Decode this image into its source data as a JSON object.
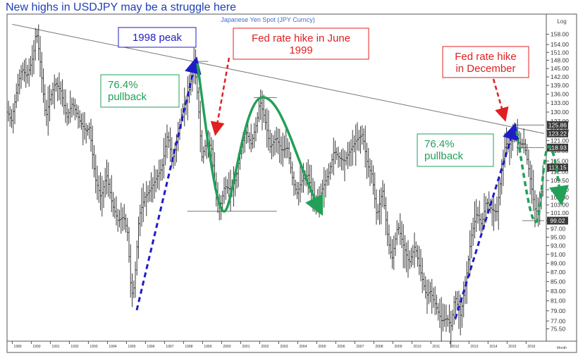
{
  "headline": "New highs in USDJPY may be a struggle here",
  "chart_data": {
    "type": "ohlc-bar",
    "title": "Japanese Yen Spot (JPY Curncy)",
    "scale_label": "Log",
    "frequency_label": "Month",
    "y_scale": "log",
    "ylim": [
      74.5,
      161
    ],
    "y_ticks": [
      158,
      154,
      151,
      148,
      145,
      142,
      139,
      136,
      133,
      130,
      127,
      124,
      121,
      118,
      115,
      112,
      109.5,
      107,
      105,
      103,
      101,
      99,
      97,
      95,
      93,
      91,
      89,
      87,
      85,
      83,
      81,
      79,
      77,
      75.5
    ],
    "y_tick_labels": [
      "158.00",
      "154.00",
      "151.00",
      "148.00",
      "145.00",
      "142.00",
      "139.00",
      "136.00",
      "133.00",
      "130.00",
      "127.00",
      "124.00",
      "121.00",
      "118.00",
      "115.00",
      "112.00",
      "109.50",
      "107.00",
      "105.00",
      "103.00",
      "101.00",
      "99.00",
      "97.00",
      "95.00",
      "93.00",
      "91.00",
      "89.00",
      "87.00",
      "85.00",
      "83.00",
      "81.00",
      "79.00",
      "77.00",
      "75.50"
    ],
    "x_range": [
      1988.8,
      2016.95
    ],
    "x_ticks": [
      "1989",
      "1990",
      "1991",
      "1992",
      "1993",
      "1994",
      "1995",
      "1996",
      "1997",
      "1998",
      "1999",
      "2000",
      "2001",
      "2002",
      "2003",
      "2004",
      "2005",
      "2006",
      "2007",
      "2008",
      "2009",
      "2010",
      "2011",
      "2012",
      "2013",
      "2014",
      "2015",
      "2016"
    ],
    "grid": false,
    "price_path": [
      [
        1988.8,
        130
      ],
      [
        1989.0,
        127
      ],
      [
        1989.3,
        138
      ],
      [
        1989.55,
        145
      ],
      [
        1989.8,
        142
      ],
      [
        1990.0,
        146
      ],
      [
        1990.15,
        150
      ],
      [
        1990.3,
        160
      ],
      [
        1990.5,
        148
      ],
      [
        1990.8,
        128
      ],
      [
        1991.0,
        134
      ],
      [
        1991.3,
        140
      ],
      [
        1991.6,
        137
      ],
      [
        1991.9,
        128
      ],
      [
        1992.2,
        133
      ],
      [
        1992.6,
        127
      ],
      [
        1992.9,
        124
      ],
      [
        1993.1,
        125
      ],
      [
        1993.4,
        110
      ],
      [
        1993.7,
        105
      ],
      [
        1994.0,
        111
      ],
      [
        1994.3,
        103
      ],
      [
        1994.6,
        99
      ],
      [
        1994.9,
        100
      ],
      [
        1995.1,
        96
      ],
      [
        1995.3,
        82
      ],
      [
        1995.45,
        84
      ],
      [
        1995.7,
        100
      ],
      [
        1996.0,
        105
      ],
      [
        1996.3,
        107
      ],
      [
        1996.6,
        110
      ],
      [
        1996.9,
        113
      ],
      [
        1997.2,
        123
      ],
      [
        1997.45,
        115
      ],
      [
        1997.7,
        121
      ],
      [
        1997.95,
        130
      ],
      [
        1998.3,
        136
      ],
      [
        1998.6,
        147
      ],
      [
        1998.8,
        134
      ],
      [
        1999.0,
        116
      ],
      [
        1999.25,
        121
      ],
      [
        1999.5,
        119
      ],
      [
        1999.75,
        105
      ],
      [
        1999.95,
        102
      ],
      [
        2000.2,
        108
      ],
      [
        2000.5,
        107
      ],
      [
        2000.8,
        110
      ],
      [
        2001.0,
        117
      ],
      [
        2001.3,
        124
      ],
      [
        2001.6,
        120
      ],
      [
        2001.9,
        127
      ],
      [
        2002.05,
        134
      ],
      [
        2002.3,
        128
      ],
      [
        2002.6,
        119
      ],
      [
        2002.9,
        122
      ],
      [
        2003.2,
        118
      ],
      [
        2003.5,
        119
      ],
      [
        2003.8,
        109
      ],
      [
        2004.0,
        106
      ],
      [
        2004.3,
        110
      ],
      [
        2004.6,
        111
      ],
      [
        2004.9,
        103
      ],
      [
        2005.1,
        104
      ],
      [
        2005.4,
        108
      ],
      [
        2005.7,
        112
      ],
      [
        2005.95,
        118
      ],
      [
        2006.2,
        116
      ],
      [
        2006.5,
        115
      ],
      [
        2006.8,
        118
      ],
      [
        2007.1,
        121
      ],
      [
        2007.45,
        123
      ],
      [
        2007.7,
        114
      ],
      [
        2007.95,
        111
      ],
      [
        2008.2,
        100
      ],
      [
        2008.5,
        107
      ],
      [
        2008.8,
        94
      ],
      [
        2009.0,
        90
      ],
      [
        2009.3,
        98
      ],
      [
        2009.6,
        93
      ],
      [
        2009.9,
        89
      ],
      [
        2010.2,
        93
      ],
      [
        2010.5,
        87
      ],
      [
        2010.8,
        82
      ],
      [
        2011.0,
        83
      ],
      [
        2011.3,
        80
      ],
      [
        2011.6,
        77
      ],
      [
        2011.9,
        77.5
      ],
      [
        2012.1,
        76
      ],
      [
        2012.3,
        82
      ],
      [
        2012.6,
        78
      ],
      [
        2012.9,
        86
      ],
      [
        2013.15,
        95
      ],
      [
        2013.45,
        101
      ],
      [
        2013.7,
        98
      ],
      [
        2013.95,
        104
      ],
      [
        2014.2,
        102
      ],
      [
        2014.5,
        101
      ],
      [
        2014.75,
        112
      ],
      [
        2014.95,
        120
      ],
      [
        2015.2,
        120
      ],
      [
        2015.45,
        124
      ],
      [
        2015.7,
        120
      ],
      [
        2015.95,
        120
      ],
      [
        2016.2,
        112
      ],
      [
        2016.5,
        102
      ],
      [
        2016.65,
        101
      ],
      [
        2016.8,
        104
      ],
      [
        2016.95,
        113
      ]
    ],
    "price_labels": [
      {
        "text": "125.86",
        "value": 125.86
      },
      {
        "text": "123.22",
        "value": 123.22
      },
      {
        "text": "118.93",
        "value": 118.93
      },
      {
        "text": "113.15",
        "value": 113.15
      },
      {
        "text": "99.02",
        "value": 99.02
      }
    ],
    "trendline": [
      [
        1989.0,
        162
      ],
      [
        2016.95,
        123.2
      ]
    ],
    "horizontal_lines": [
      {
        "value": 147.6,
        "from": 1998.45,
        "to": 1999.3
      },
      {
        "value": 134.8,
        "from": 2001.7,
        "to": 2002.9
      },
      {
        "value": 101.4,
        "from": 1998.2,
        "to": 2002.9
      },
      {
        "value": 125.86,
        "from": 2015.3,
        "to": 2016.95
      },
      {
        "value": 118.93,
        "from": 2015.5,
        "to": 2016.95
      },
      {
        "value": 99.02,
        "from": 2015.8,
        "to": 2016.95
      }
    ],
    "annotations": [
      {
        "text": [
          "1998 peak"
        ],
        "color": "#1d1dc8",
        "size": 15
      },
      {
        "text": [
          "Fed rate hike in June",
          "1999"
        ],
        "color": "#e02020",
        "size": 15
      },
      {
        "text": [
          "76.4%",
          "pullback"
        ],
        "color": "#22a058",
        "size": 15
      },
      {
        "text": [
          "Fed rate hike",
          "in December"
        ],
        "color": "#e02020",
        "size": 15
      },
      {
        "text": [
          "76.4%",
          "pullback"
        ],
        "color": "#22a058",
        "size": 15
      }
    ],
    "colors": {
      "blue": "#1d1dc8",
      "red": "#e02020",
      "green": "#22a058",
      "bars": "#333333"
    }
  }
}
